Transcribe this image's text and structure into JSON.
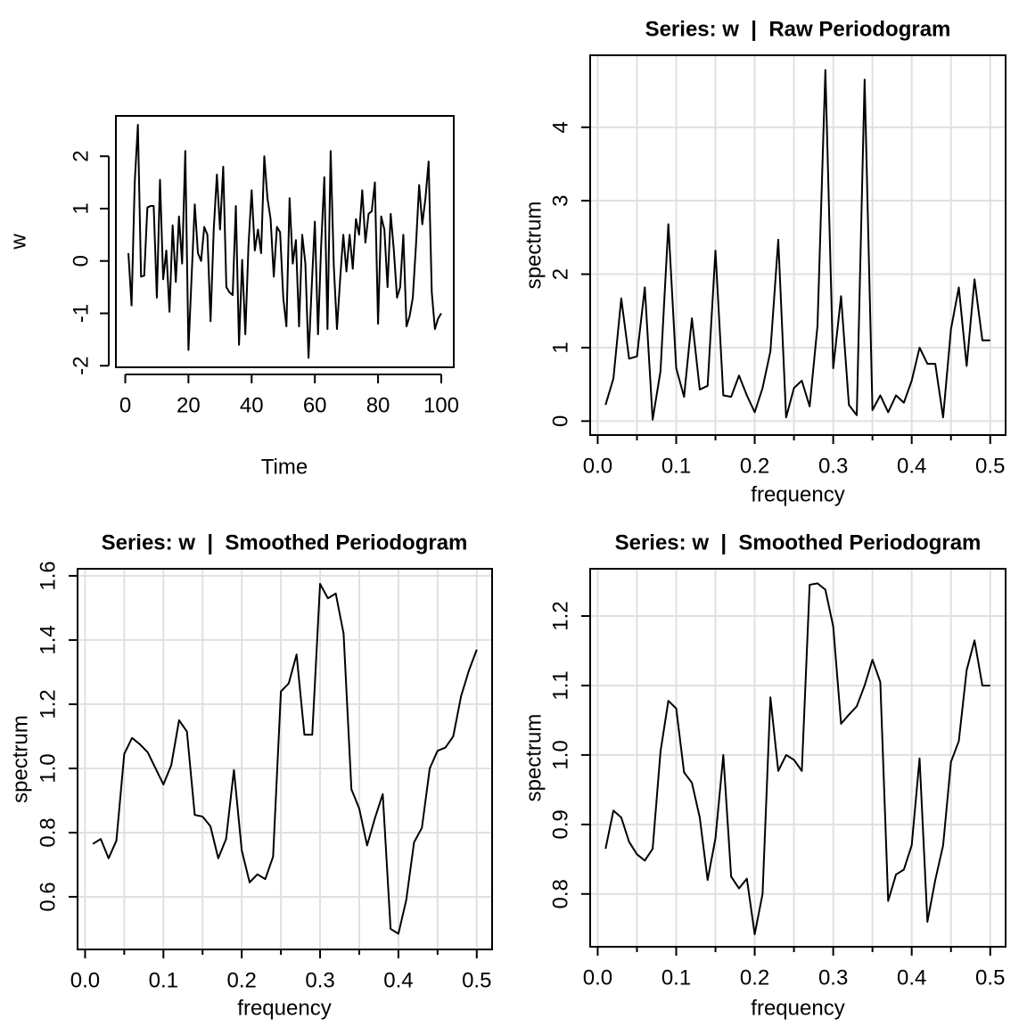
{
  "chart_data": [
    {
      "type": "line",
      "x_label": "Time",
      "y_label": "w",
      "grid": false,
      "color": "#000000",
      "x": [
        1,
        2,
        3,
        4,
        5,
        6,
        7,
        8,
        9,
        10,
        11,
        12,
        13,
        14,
        15,
        16,
        17,
        18,
        19,
        20,
        21,
        22,
        23,
        24,
        25,
        26,
        27,
        28,
        29,
        30,
        31,
        32,
        33,
        34,
        35,
        36,
        37,
        38,
        39,
        40,
        41,
        42,
        43,
        44,
        45,
        46,
        47,
        48,
        49,
        50,
        51,
        52,
        53,
        54,
        55,
        56,
        57,
        58,
        59,
        60,
        61,
        62,
        63,
        64,
        65,
        66,
        67,
        68,
        69,
        70,
        71,
        72,
        73,
        74,
        75,
        76,
        77,
        78,
        79,
        80,
        81,
        82,
        83,
        84,
        85,
        86,
        87,
        88,
        89,
        90,
        91,
        92,
        93,
        94,
        95,
        96,
        97,
        98,
        99,
        100
      ],
      "values": [
        0.15,
        -0.85,
        1.5,
        2.6,
        -0.3,
        -0.28,
        1.02,
        1.05,
        1.05,
        -0.7,
        1.55,
        -0.35,
        0.2,
        -0.97,
        0.68,
        -0.4,
        0.85,
        -0.05,
        2.1,
        -1.7,
        -0.3,
        1.08,
        0.15,
        0,
        0.65,
        0.5,
        -1.15,
        0.6,
        1.65,
        0.6,
        1.8,
        -0.5,
        -0.6,
        -0.65,
        1.05,
        -1.6,
        0.02,
        -1.4,
        0.3,
        1.35,
        0.2,
        0.6,
        0.15,
        2.0,
        1.2,
        0.8,
        -0.3,
        0.65,
        0.55,
        -0.7,
        -1.25,
        1.2,
        -0.05,
        0.4,
        -1.25,
        0.5,
        -0.05,
        -1.85,
        -0.5,
        0.75,
        -1.4,
        0.3,
        1.6,
        -1.3,
        2.1,
        -0.1,
        -1.3,
        -0.35,
        0.5,
        -0.2,
        0.5,
        -0.15,
        0.8,
        0.5,
        1.35,
        0.35,
        0.9,
        0.95,
        1.5,
        -1.2,
        0.85,
        0.6,
        -0.5,
        0.9,
        0.2,
        -0.7,
        -0.5,
        0.5,
        -1.25,
        -1.05,
        -0.7,
        0.3,
        1.45,
        0.7,
        1.2,
        1.9,
        -0.6,
        -1.3,
        -1.1,
        -1.0
      ],
      "xlim": [
        -2.96,
        103.96
      ],
      "xticks": [
        0,
        20,
        40,
        60,
        80,
        100
      ],
      "ylim": [
        -2.03,
        2.77
      ],
      "yticks": [
        -2,
        -1,
        0,
        1,
        2
      ]
    },
    {
      "type": "line",
      "title": "Series: w  |  Raw Periodogram",
      "x_label": "frequency",
      "y_label": "spectrum",
      "grid": true,
      "color": "#000000",
      "x": [
        0.01,
        0.02,
        0.03,
        0.04,
        0.05,
        0.06,
        0.07,
        0.08,
        0.09,
        0.1,
        0.11,
        0.12,
        0.13,
        0.14,
        0.15,
        0.16,
        0.17,
        0.18,
        0.19,
        0.2,
        0.21,
        0.22,
        0.23,
        0.24,
        0.25,
        0.26,
        0.27,
        0.28,
        0.29,
        0.3,
        0.31,
        0.32,
        0.33,
        0.34,
        0.35,
        0.36,
        0.37,
        0.38,
        0.39,
        0.4,
        0.41,
        0.42,
        0.43,
        0.44,
        0.45,
        0.46,
        0.47,
        0.48,
        0.49,
        0.5
      ],
      "values": [
        0.22,
        0.58,
        1.67,
        0.85,
        0.88,
        1.82,
        0.02,
        0.68,
        2.68,
        0.72,
        0.33,
        1.4,
        0.43,
        0.48,
        2.32,
        0.35,
        0.33,
        0.62,
        0.35,
        0.12,
        0.45,
        0.95,
        2.47,
        0.05,
        0.45,
        0.55,
        0.2,
        1.3,
        4.78,
        0.72,
        1.7,
        0.22,
        0.08,
        4.65,
        0.15,
        0.35,
        0.12,
        0.35,
        0.25,
        0.55,
        1.0,
        0.78,
        0.78,
        0.05,
        1.25,
        1.82,
        0.75,
        1.93,
        1.1,
        1.1
      ],
      "xlim": [
        -0.0096,
        0.5196
      ],
      "xticks": [
        {
          "value": 0,
          "label": "0.0"
        },
        0.1,
        0.2,
        0.3,
        0.4,
        0.5
      ],
      "xminor": [
        0.05,
        0.15,
        0.25,
        0.35,
        0.45
      ],
      "ylim": [
        -0.19,
        4.98
      ],
      "yticks": [
        0,
        1,
        2,
        3,
        4
      ]
    },
    {
      "type": "line",
      "title": "Series: w  |  Smoothed Periodogram",
      "x_label": "frequency",
      "y_label": "spectrum",
      "grid": true,
      "color": "#000000",
      "x": [
        0.01,
        0.02,
        0.03,
        0.04,
        0.05,
        0.06,
        0.07,
        0.08,
        0.09,
        0.1,
        0.11,
        0.12,
        0.13,
        0.14,
        0.15,
        0.16,
        0.17,
        0.18,
        0.19,
        0.2,
        0.21,
        0.22,
        0.23,
        0.24,
        0.25,
        0.26,
        0.27,
        0.28,
        0.29,
        0.3,
        0.31,
        0.32,
        0.33,
        0.34,
        0.35,
        0.36,
        0.37,
        0.38,
        0.39,
        0.4,
        0.41,
        0.42,
        0.43,
        0.44,
        0.45,
        0.46,
        0.47,
        0.48,
        0.49,
        0.5
      ],
      "values": [
        0.765,
        0.78,
        0.72,
        0.775,
        1.045,
        1.095,
        1.075,
        1.05,
        1.0,
        0.95,
        1.01,
        1.15,
        1.115,
        0.855,
        0.85,
        0.82,
        0.72,
        0.78,
        0.995,
        0.745,
        0.645,
        0.67,
        0.655,
        0.725,
        1.24,
        1.265,
        1.355,
        1.105,
        1.105,
        1.575,
        1.53,
        1.545,
        1.42,
        0.935,
        0.875,
        0.76,
        0.845,
        0.92,
        0.5,
        0.485,
        0.59,
        0.77,
        0.815,
        1.0,
        1.055,
        1.065,
        1.1,
        1.225,
        1.305,
        1.37
      ],
      "xlim": [
        -0.0096,
        0.5196
      ],
      "xticks": [
        {
          "value": 0,
          "label": "0.0"
        },
        0.1,
        0.2,
        0.3,
        0.4,
        0.5
      ],
      "xminor": [
        0.05,
        0.15,
        0.25,
        0.35,
        0.45
      ],
      "ylim": [
        0.436,
        1.622
      ],
      "yticks": [
        0.6,
        0.8,
        {
          "value": 1,
          "label": "1.0"
        },
        1.2,
        1.4,
        1.6
      ]
    },
    {
      "type": "line",
      "title": "Series: w  |  Smoothed Periodogram",
      "x_label": "frequency",
      "y_label": "spectrum",
      "grid": true,
      "color": "#000000",
      "x": [
        0.01,
        0.02,
        0.03,
        0.04,
        0.05,
        0.06,
        0.07,
        0.08,
        0.09,
        0.1,
        0.11,
        0.12,
        0.13,
        0.14,
        0.15,
        0.16,
        0.17,
        0.18,
        0.19,
        0.2,
        0.21,
        0.22,
        0.23,
        0.24,
        0.25,
        0.26,
        0.27,
        0.28,
        0.29,
        0.3,
        0.31,
        0.32,
        0.33,
        0.34,
        0.35,
        0.36,
        0.37,
        0.38,
        0.39,
        0.4,
        0.41,
        0.42,
        0.43,
        0.44,
        0.45,
        0.46,
        0.47,
        0.48,
        0.49,
        0.5
      ],
      "values": [
        0.865,
        0.92,
        0.91,
        0.875,
        0.857,
        0.848,
        0.865,
        1.005,
        1.078,
        1.067,
        0.975,
        0.96,
        0.91,
        0.82,
        0.88,
        1.0,
        0.825,
        0.808,
        0.822,
        0.742,
        0.8,
        1.083,
        0.977,
        1.0,
        0.993,
        0.977,
        1.245,
        1.247,
        1.238,
        1.185,
        1.045,
        1.058,
        1.07,
        1.1,
        1.137,
        1.105,
        0.79,
        0.828,
        0.835,
        0.87,
        0.995,
        0.76,
        0.82,
        0.87,
        0.99,
        1.02,
        1.122,
        1.165,
        1.1,
        1.1
      ],
      "xlim": [
        -0.0096,
        0.5196
      ],
      "xticks": [
        {
          "value": 0,
          "label": "0.0"
        },
        0.1,
        0.2,
        0.3,
        0.4,
        0.5
      ],
      "xminor": [
        0.05,
        0.15,
        0.25,
        0.35,
        0.45
      ],
      "ylim": [
        0.724,
        1.268
      ],
      "yticks": [
        0.8,
        0.9,
        {
          "value": 1,
          "label": "1.0"
        },
        1.1,
        1.2
      ]
    }
  ]
}
